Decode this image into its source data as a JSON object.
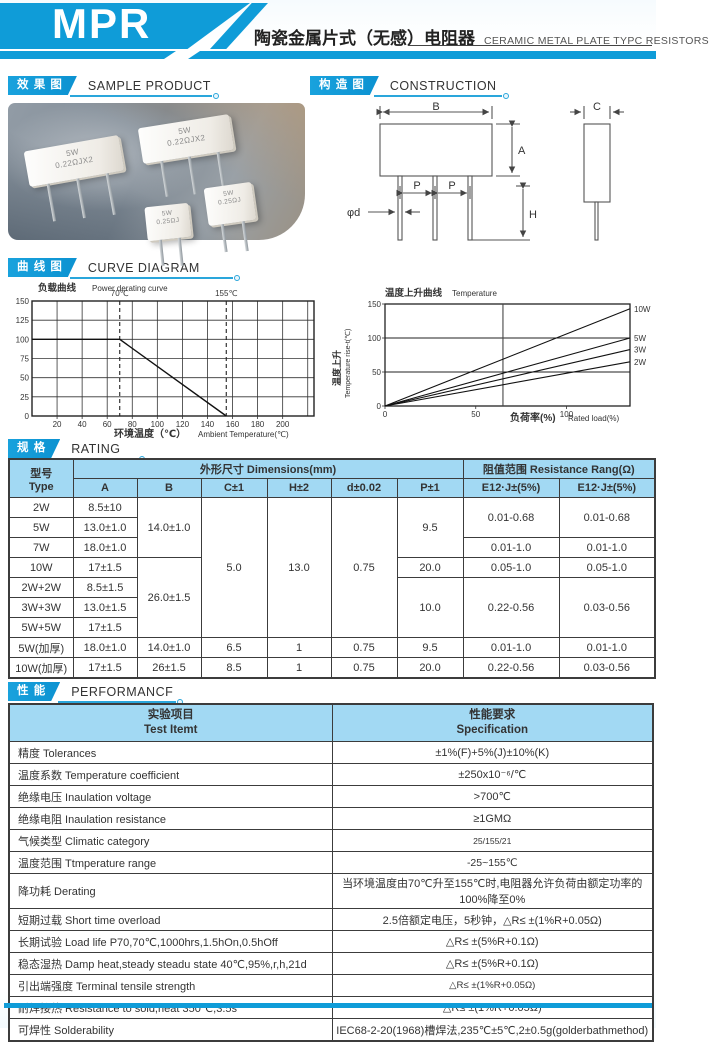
{
  "accent_color": "#0f9cd8",
  "table_header_color": "#a2d9f3",
  "header": {
    "logo": "MPR",
    "title_cn": "陶瓷金属片式（无感）电阻器",
    "title_en": "CERAMIC METAL PLATE TYPC RESISTORS"
  },
  "sections": {
    "sample": {
      "cn": "效 果 图",
      "en": "SAMPLE PRODUCT"
    },
    "construction": {
      "cn": "构 造 图",
      "en": "CONSTRUCTION"
    },
    "curve": {
      "cn": "曲 线 图",
      "en": "CURVE DIAGRAM"
    },
    "rating": {
      "cn": "规 格",
      "en": "RATING"
    },
    "performance": {
      "cn": "性 能",
      "en": "PERFORMANCF"
    }
  },
  "photo": {
    "resistors": [
      {
        "text": "5W\n0.22ΩJX2"
      },
      {
        "text": "5W\n0.22ΩJX2"
      },
      {
        "text": "5W\n0.25ΩJ"
      },
      {
        "text": "5W\n0.25ΩJ"
      }
    ]
  },
  "construction": {
    "labels": {
      "b": "B",
      "a": "A",
      "p_left": "P",
      "p_right": "P",
      "d": "φd",
      "h": "H",
      "c": "C"
    }
  },
  "chart_data": [
    {
      "type": "line",
      "title_cn": "负载曲线",
      "title_en": "Power derating curve",
      "xlabel_cn": "环境温度（℃）",
      "xlabel_en": "Ambient Temperature(℃)",
      "xlim": [
        0,
        225
      ],
      "ylim": [
        0,
        150
      ],
      "xticks": [
        20,
        40,
        60,
        80,
        100,
        120,
        140,
        160,
        180,
        200
      ],
      "yticks": [
        0,
        25,
        50,
        75,
        100,
        125,
        150
      ],
      "grid": "full",
      "dashed_lines": [
        {
          "x": 70,
          "label": "70℃"
        },
        {
          "x": 155,
          "label": "155℃"
        }
      ],
      "points": [
        [
          0,
          100
        ],
        [
          70,
          100
        ],
        [
          155,
          0
        ]
      ]
    },
    {
      "type": "line",
      "title_cn": "温度上升曲线",
      "title_en": "Temperature",
      "ylabel_cn": "温度上升",
      "ylabel_en": "Temperature rise-t(℃)",
      "xlabel_cn": "负荷率(%)",
      "xlabel_en": "Rated load(%)",
      "xlim": [
        0,
        135
      ],
      "ylim": [
        0,
        150
      ],
      "xticks": [
        0,
        50,
        100
      ],
      "yticks": [
        0,
        50,
        100,
        150
      ],
      "hgrid": [
        50,
        100
      ],
      "vline": 65,
      "series": [
        {
          "name": "10W",
          "points": [
            [
              0,
              0
            ],
            [
              135,
              143
            ]
          ]
        },
        {
          "name": "5W",
          "points": [
            [
              0,
              0
            ],
            [
              135,
              100
            ]
          ]
        },
        {
          "name": "3W",
          "points": [
            [
              0,
              0
            ],
            [
              135,
              83
            ]
          ]
        },
        {
          "name": "2W",
          "points": [
            [
              0,
              0
            ],
            [
              135,
              65
            ]
          ]
        }
      ]
    }
  ],
  "rating_table": {
    "header": [
      [
        {
          "t": "型号\nType",
          "rs": 2
        },
        {
          "t": "外形尺寸 Dimensions(mm)",
          "cs": 6
        },
        {
          "t": "阻值范围 Resistance Rang(Ω)",
          "cs": 2
        }
      ],
      [
        {
          "t": "A"
        },
        {
          "t": "B"
        },
        {
          "t": "C±1"
        },
        {
          "t": "H±2"
        },
        {
          "t": "d±0.02"
        },
        {
          "t": "P±1"
        },
        {
          "t": "E12·J±(5%)"
        },
        {
          "t": "E12·J±(5%)"
        }
      ]
    ],
    "rows": [
      [
        {
          "t": "2W"
        },
        {
          "t": "8.5±10"
        },
        {
          "t": "14.0±1.0",
          "rs": 3
        },
        {
          "t": "5.0",
          "rs": 7
        },
        {
          "t": "13.0",
          "rs": 7
        },
        {
          "t": "0.75",
          "rs": 7
        },
        {
          "t": "9.5",
          "rs": 3
        },
        {
          "t": "0.01-0.68",
          "rs": 2
        },
        {
          "t": "0.01-0.68",
          "rs": 2
        }
      ],
      [
        {
          "t": "5W"
        },
        {
          "t": "13.0±1.0"
        }
      ],
      [
        {
          "t": "7W"
        },
        {
          "t": "18.0±1.0"
        },
        {
          "t": "0.01-1.0"
        },
        {
          "t": "0.01-1.0"
        }
      ],
      [
        {
          "t": "10W"
        },
        {
          "t": "17±1.5"
        },
        {
          "t": "26.0±1.5",
          "rs": 4
        },
        {
          "t": "20.0"
        },
        {
          "t": "0.05-1.0"
        },
        {
          "t": "0.05-1.0"
        }
      ],
      [
        {
          "t": "2W+2W"
        },
        {
          "t": "8.5±1.5"
        },
        {
          "t": "10.0",
          "rs": 3
        },
        {
          "t": "0.22-0.56",
          "rs": 3
        },
        {
          "t": "0.03-0.56",
          "rs": 3
        }
      ],
      [
        {
          "t": "3W+3W"
        },
        {
          "t": "13.0±1.5"
        }
      ],
      [
        {
          "t": "5W+5W"
        },
        {
          "t": "17±1.5"
        }
      ],
      [
        {
          "t": "5W(加厚)"
        },
        {
          "t": "18.0±1.0"
        },
        {
          "t": "14.0±1.0"
        },
        {
          "t": "6.5"
        },
        {
          "t": "1"
        },
        {
          "t": "0.75"
        },
        {
          "t": "9.5"
        },
        {
          "t": "0.01-1.0"
        },
        {
          "t": "0.01-1.0"
        }
      ],
      [
        {
          "t": "10W(加厚)"
        },
        {
          "t": "17±1.5"
        },
        {
          "t": "26±1.5"
        },
        {
          "t": "8.5"
        },
        {
          "t": "1"
        },
        {
          "t": "0.75"
        },
        {
          "t": "20.0"
        },
        {
          "t": "0.22-0.56"
        },
        {
          "t": "0.03-0.56"
        }
      ]
    ]
  },
  "performance_table": {
    "header": {
      "item": "实验项目\nTest Itemt",
      "spec": "性能要求\nSpecification"
    },
    "rows": [
      [
        "精度 Tolerances",
        "±1%(F)+5%(J)±10%(K)"
      ],
      [
        "温度系数 Temperature coefficient",
        "±250x10⁻⁶/℃"
      ],
      [
        "绝缘电压 Inaulation voltage",
        ">700℃"
      ],
      [
        "绝缘电阻 Inaulation resistance",
        "≥1GMΩ"
      ],
      [
        "气候类型 Climatic category",
        "25/155/21"
      ],
      [
        "温度范围 Ttmperature range",
        "-25~155℃"
      ],
      [
        "降功耗 Derating",
        "当环境温度由70℃升至155℃时,电阻器允许负荷由额定功率的100%降至0%"
      ],
      [
        "短期过载 Short time overload",
        "2.5倍额定电压，5秒钟，△R≤ ±(1%R+0.05Ω)"
      ],
      [
        "长期试验 Load life P70,70℃,1000hrs,1.5hOn,0.5hOff",
        "△R≤ ±(5%R+0.1Ω)"
      ],
      [
        "稳态湿热 Damp heat,steady steadu state 40℃,95%,r,h,21d",
        "△R≤ ±(5%R+0.1Ω)"
      ],
      [
        "引出端强度 Terminal tensile strength",
        "△R≤ ±(1%R+0.05Ω)"
      ],
      [
        "耐焊接热 Resistance to sold,heat 350℃,3.5s",
        "△R≤ ±(1%R+0.05Ω)"
      ],
      [
        "可焊性 Solderability",
        "IEC68-2-20(1968)槽焊法,235℃±5℃,2±0.5g(golderbathmethod)"
      ]
    ]
  }
}
